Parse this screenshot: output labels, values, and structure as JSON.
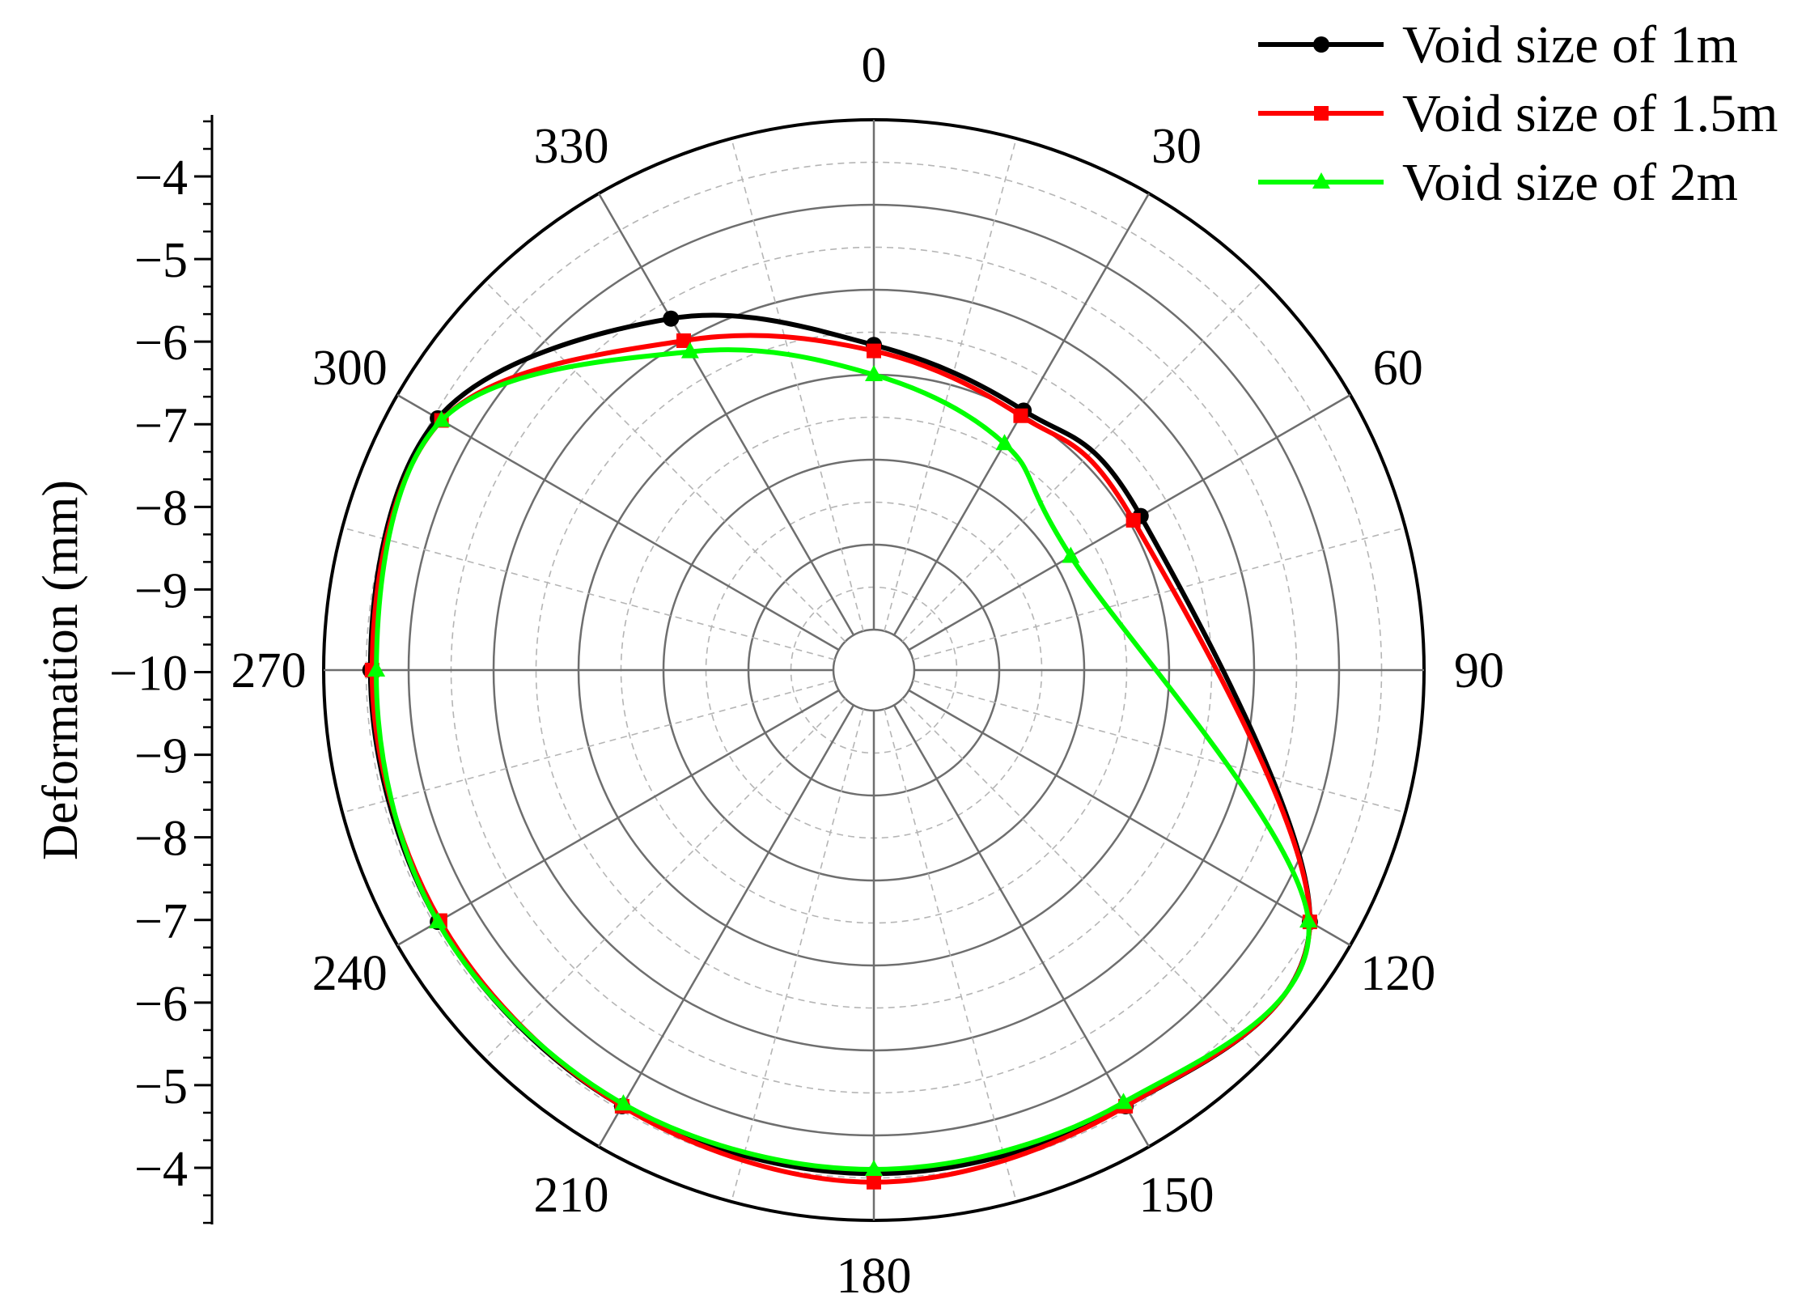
{
  "chart_data": {
    "type": "polar-line",
    "ylabel": "Deformation (mm)",
    "radial_axis": {
      "center_value": -10,
      "edge_value": -4,
      "major_ticks": [
        -4,
        -5,
        -6,
        -7,
        -8,
        -9,
        -10,
        -9,
        -8,
        -7,
        -6,
        -5,
        -4
      ],
      "grid": true
    },
    "angle_ticks": [
      "0",
      "30",
      "60",
      "90",
      "120",
      "150",
      "180",
      "210",
      "240",
      "270",
      "300",
      "330"
    ],
    "legend_position": "top-right",
    "series": [
      {
        "name": "Void size of 1m",
        "color": "#000000",
        "marker": "circle",
        "angles": [
          0,
          30,
          60,
          120,
          150,
          180,
          210,
          240,
          270,
          300,
          330
        ],
        "values": [
          -6.65,
          -6.95,
          -6.85,
          -4.55,
          -4.55,
          -4.55,
          -4.55,
          -4.55,
          -4.55,
          -4.55,
          -5.7
        ]
      },
      {
        "name": "Void size of 1.5m",
        "color": "#ff0000",
        "marker": "square",
        "angles": [
          0,
          30,
          60,
          120,
          150,
          180,
          210,
          240,
          270,
          300,
          330
        ],
        "values": [
          -6.72,
          -7.02,
          -6.95,
          -4.55,
          -4.55,
          -4.45,
          -4.55,
          -4.58,
          -4.57,
          -4.6,
          -6.0
        ]
      },
      {
        "name": "Void size of 2m",
        "color": "#00ff00",
        "marker": "triangle",
        "angles": [
          0,
          30,
          60,
          120,
          150,
          180,
          210,
          240,
          270,
          300,
          330
        ],
        "values": [
          -7.0,
          -7.4,
          -7.8,
          -4.57,
          -4.6,
          -4.6,
          -4.58,
          -4.55,
          -4.62,
          -4.6,
          -6.15
        ]
      }
    ]
  }
}
